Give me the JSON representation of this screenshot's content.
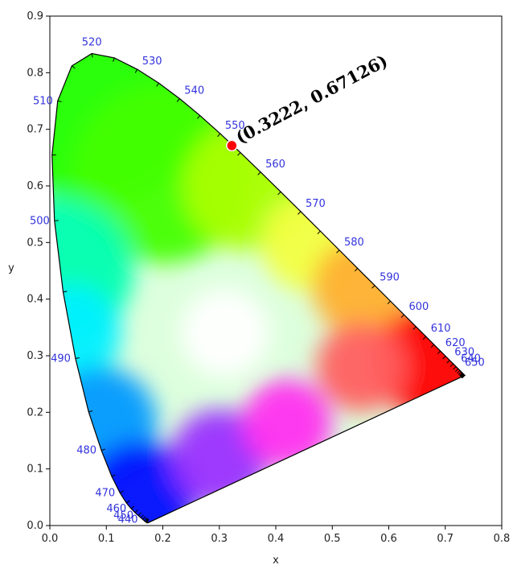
{
  "chart_data": {
    "type": "scatter",
    "xlabel": "x",
    "ylabel": "y",
    "xlim": [
      0.0,
      0.8
    ],
    "ylim": [
      0.0,
      0.9
    ],
    "xticks": [
      "0.0",
      "0.1",
      "0.2",
      "0.3",
      "0.4",
      "0.5",
      "0.6",
      "0.7",
      "0.8"
    ],
    "yticks": [
      "0.0",
      "0.1",
      "0.2",
      "0.3",
      "0.4",
      "0.5",
      "0.6",
      "0.7",
      "0.8",
      "0.9"
    ],
    "locus": [
      [
        0.1741,
        0.005
      ],
      [
        0.174,
        0.005
      ],
      [
        0.1738,
        0.0049
      ],
      [
        0.1736,
        0.0049
      ],
      [
        0.1733,
        0.0048
      ],
      [
        0.173,
        0.0048
      ],
      [
        0.1726,
        0.0048
      ],
      [
        0.1721,
        0.0048
      ],
      [
        0.1714,
        0.0051
      ],
      [
        0.1703,
        0.0058
      ],
      [
        0.1689,
        0.0069
      ],
      [
        0.1669,
        0.0086
      ],
      [
        0.1644,
        0.0109
      ],
      [
        0.1611,
        0.0138
      ],
      [
        0.1566,
        0.0177
      ],
      [
        0.151,
        0.0227
      ],
      [
        0.144,
        0.0297
      ],
      [
        0.1355,
        0.0399
      ],
      [
        0.1241,
        0.0578
      ],
      [
        0.1096,
        0.0868
      ],
      [
        0.0913,
        0.1327
      ],
      [
        0.0687,
        0.2007
      ],
      [
        0.0454,
        0.295
      ],
      [
        0.0235,
        0.4127
      ],
      [
        0.0082,
        0.5384
      ],
      [
        0.0039,
        0.6548
      ],
      [
        0.0139,
        0.7502
      ],
      [
        0.0389,
        0.812
      ],
      [
        0.0743,
        0.8338
      ],
      [
        0.1142,
        0.8262
      ],
      [
        0.1547,
        0.8059
      ],
      [
        0.1929,
        0.7816
      ],
      [
        0.2296,
        0.7543
      ],
      [
        0.2658,
        0.7243
      ],
      [
        0.3016,
        0.6923
      ],
      [
        0.3373,
        0.6589
      ],
      [
        0.3731,
        0.6245
      ],
      [
        0.4087,
        0.5896
      ],
      [
        0.4441,
        0.5547
      ],
      [
        0.4788,
        0.5202
      ],
      [
        0.5125,
        0.4866
      ],
      [
        0.5448,
        0.4544
      ],
      [
        0.5752,
        0.4242
      ],
      [
        0.6029,
        0.3965
      ],
      [
        0.627,
        0.3725
      ],
      [
        0.6482,
        0.3514
      ],
      [
        0.6658,
        0.334
      ],
      [
        0.6801,
        0.3197
      ],
      [
        0.6915,
        0.3083
      ],
      [
        0.7006,
        0.2993
      ],
      [
        0.7079,
        0.292
      ],
      [
        0.714,
        0.2859
      ],
      [
        0.719,
        0.2809
      ],
      [
        0.723,
        0.277
      ],
      [
        0.726,
        0.274
      ],
      [
        0.7283,
        0.2717
      ],
      [
        0.73,
        0.27
      ],
      [
        0.7311,
        0.2689
      ],
      [
        0.732,
        0.268
      ],
      [
        0.7327,
        0.2673
      ],
      [
        0.7334,
        0.2666
      ],
      [
        0.734,
        0.266
      ],
      [
        0.7344,
        0.2656
      ],
      [
        0.7346,
        0.2654
      ],
      [
        0.7347,
        0.2653
      ]
    ],
    "wavelength_labels": [
      {
        "label": "440",
        "x": 0.1644,
        "y": 0.0109,
        "side": "left"
      },
      {
        "label": "450",
        "x": 0.1566,
        "y": 0.0177,
        "side": "left"
      },
      {
        "label": "460",
        "x": 0.144,
        "y": 0.0297,
        "side": "left"
      },
      {
        "label": "470",
        "x": 0.1241,
        "y": 0.0578,
        "side": "left"
      },
      {
        "label": "480",
        "x": 0.0913,
        "y": 0.1327,
        "side": "left"
      },
      {
        "label": "490",
        "x": 0.0454,
        "y": 0.295,
        "side": "left"
      },
      {
        "label": "500",
        "x": 0.0082,
        "y": 0.5384,
        "side": "left"
      },
      {
        "label": "510",
        "x": 0.0139,
        "y": 0.7502,
        "side": "left"
      },
      {
        "label": "520",
        "x": 0.0743,
        "y": 0.8338,
        "side": "top"
      },
      {
        "label": "530",
        "x": 0.1547,
        "y": 0.8059,
        "side": "right"
      },
      {
        "label": "540",
        "x": 0.2296,
        "y": 0.7543,
        "side": "right"
      },
      {
        "label": "550",
        "x": 0.3016,
        "y": 0.6923,
        "side": "right"
      },
      {
        "label": "560",
        "x": 0.3731,
        "y": 0.6245,
        "side": "right"
      },
      {
        "label": "570",
        "x": 0.4441,
        "y": 0.5547,
        "side": "right"
      },
      {
        "label": "580",
        "x": 0.5125,
        "y": 0.4866,
        "side": "right"
      },
      {
        "label": "590",
        "x": 0.5752,
        "y": 0.4242,
        "side": "right"
      },
      {
        "label": "600",
        "x": 0.627,
        "y": 0.3725,
        "side": "right"
      },
      {
        "label": "610",
        "x": 0.6658,
        "y": 0.334,
        "side": "right"
      },
      {
        "label": "620",
        "x": 0.6915,
        "y": 0.3083,
        "side": "right"
      },
      {
        "label": "630",
        "x": 0.7079,
        "y": 0.292,
        "side": "right"
      },
      {
        "label": "640",
        "x": 0.719,
        "y": 0.2809,
        "side": "right"
      },
      {
        "label": "650",
        "x": 0.726,
        "y": 0.274,
        "side": "right"
      }
    ],
    "point": {
      "x": 0.3222,
      "y": 0.67126,
      "label": "(0.3222, 0.67126)",
      "color": "#ff0000"
    },
    "colors": {
      "frame": "#000000",
      "tick": "#000000",
      "wavelength_label": "#3333dd",
      "white": "#ffffff"
    }
  }
}
